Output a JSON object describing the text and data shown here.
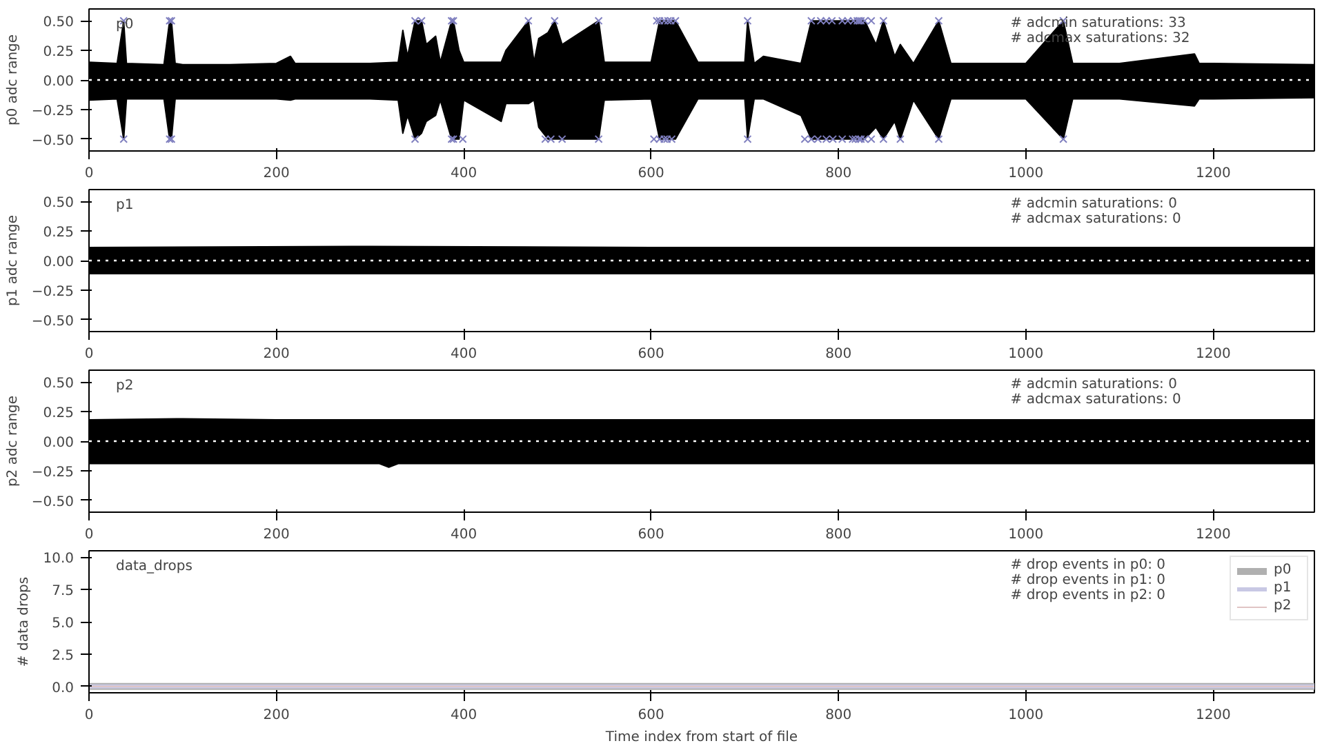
{
  "chart_data": [
    {
      "type": "area",
      "ylabel": "p0 adc range",
      "xlim": [
        0,
        1308
      ],
      "ylim": [
        -0.6,
        0.6
      ],
      "xticks": [
        0,
        200,
        400,
        600,
        800,
        1000,
        1200
      ],
      "yticks": [
        {
          "value": -0.5,
          "label": "−0.50"
        },
        {
          "value": -0.25,
          "label": "−0.25"
        },
        {
          "value": 0,
          "label": "0.00"
        },
        {
          "value": 0.25,
          "label": "0.25"
        },
        {
          "value": 0.5,
          "label": "0.50"
        }
      ],
      "grid": false,
      "annotations": [
        "p0",
        "# adcmin saturations: 33",
        "# adcmax saturations: 32"
      ],
      "ref_lines": [
        {
          "axis": "y",
          "value": 0,
          "color": "#ffffff",
          "line_style": "dotted"
        }
      ],
      "series": [
        {
          "color": "#000000",
          "x": [
            0,
            30,
            37,
            40,
            80,
            86,
            88,
            92,
            100,
            150,
            200,
            215,
            220,
            300,
            330,
            335,
            340,
            348,
            355,
            360,
            370,
            375,
            387,
            389,
            395,
            400,
            440,
            445,
            469,
            475,
            480,
            490,
            497,
            505,
            544,
            550,
            600,
            609,
            616,
            626,
            650,
            700,
            703,
            710,
            720,
            760,
            771,
            781,
            790,
            804,
            816,
            828,
            840,
            848,
            860,
            866,
            880,
            907,
            920,
            1000,
            1040,
            1050,
            1100,
            1180,
            1185,
            1200,
            1308
          ],
          "values": [
            0.15,
            0.14,
            0.5,
            0.14,
            0.13,
            0.5,
            0.5,
            0.14,
            0.13,
            0.13,
            0.14,
            0.2,
            0.14,
            0.14,
            0.15,
            0.42,
            0.2,
            0.5,
            0.5,
            0.3,
            0.37,
            0.15,
            0.5,
            0.5,
            0.25,
            0.15,
            0.15,
            0.25,
            0.5,
            0.15,
            0.35,
            0.4,
            0.5,
            0.3,
            0.5,
            0.15,
            0.15,
            0.5,
            0.5,
            0.5,
            0.15,
            0.15,
            0.5,
            0.14,
            0.2,
            0.14,
            0.5,
            0.5,
            0.5,
            0.5,
            0.5,
            0.5,
            0.3,
            0.5,
            0.2,
            0.3,
            0.14,
            0.5,
            0.14,
            0.14,
            0.5,
            0.14,
            0.14,
            0.22,
            0.14,
            0.14,
            0.13
          ]
        },
        {
          "color": "#000000",
          "x": [
            0,
            30,
            37,
            40,
            80,
            86,
            88,
            92,
            100,
            150,
            200,
            215,
            220,
            300,
            330,
            335,
            340,
            348,
            355,
            360,
            370,
            375,
            387,
            389,
            395,
            400,
            440,
            445,
            469,
            475,
            480,
            490,
            497,
            505,
            544,
            550,
            600,
            609,
            616,
            626,
            650,
            700,
            703,
            710,
            720,
            760,
            771,
            781,
            790,
            804,
            816,
            828,
            840,
            848,
            860,
            866,
            880,
            907,
            920,
            1000,
            1040,
            1050,
            1100,
            1180,
            1185,
            1200,
            1308
          ],
          "values": [
            -0.17,
            -0.16,
            -0.5,
            -0.16,
            -0.16,
            -0.5,
            -0.5,
            -0.16,
            -0.16,
            -0.16,
            -0.16,
            -0.17,
            -0.16,
            -0.16,
            -0.17,
            -0.45,
            -0.3,
            -0.5,
            -0.45,
            -0.35,
            -0.3,
            -0.17,
            -0.5,
            -0.5,
            -0.5,
            -0.17,
            -0.35,
            -0.2,
            -0.2,
            -0.17,
            -0.4,
            -0.5,
            -0.5,
            -0.5,
            -0.5,
            -0.17,
            -0.16,
            -0.5,
            -0.5,
            -0.5,
            -0.16,
            -0.16,
            -0.5,
            -0.16,
            -0.16,
            -0.3,
            -0.5,
            -0.5,
            -0.5,
            -0.5,
            -0.5,
            -0.5,
            -0.4,
            -0.5,
            -0.35,
            -0.5,
            -0.17,
            -0.5,
            -0.16,
            -0.16,
            -0.5,
            -0.16,
            -0.16,
            -0.22,
            -0.16,
            -0.16,
            -0.15
          ]
        },
        {
          "type": "scatter",
          "marker": "cross",
          "color": "#7f7fbf",
          "x": [
            37,
            86,
            88,
            348,
            387,
            389,
            399,
            487,
            493,
            505,
            544,
            603,
            609,
            614,
            617,
            622,
            703,
            764,
            771,
            778,
            787,
            794,
            804,
            815,
            818,
            822,
            824,
            828,
            835,
            848,
            866,
            907,
            1040
          ],
          "values": [
            -0.5,
            -0.5,
            -0.5,
            -0.5,
            -0.5,
            -0.5,
            -0.5,
            -0.5,
            -0.5,
            -0.5,
            -0.5,
            -0.5,
            -0.5,
            -0.5,
            -0.5,
            -0.5,
            -0.5,
            -0.5,
            -0.5,
            -0.5,
            -0.5,
            -0.5,
            -0.5,
            -0.5,
            -0.5,
            -0.5,
            -0.5,
            -0.5,
            -0.5,
            -0.5,
            -0.5,
            -0.5,
            -0.5
          ]
        },
        {
          "type": "scatter",
          "marker": "cross",
          "color": "#7f7fbf",
          "x": [
            37,
            86,
            88,
            348,
            355,
            387,
            389,
            469,
            497,
            544,
            606,
            609,
            614,
            618,
            621,
            626,
            703,
            771,
            781,
            787,
            793,
            804,
            810,
            816,
            820,
            822,
            824,
            828,
            835,
            848,
            907,
            1040
          ],
          "values": [
            0.5,
            0.5,
            0.5,
            0.5,
            0.5,
            0.5,
            0.5,
            0.5,
            0.5,
            0.5,
            0.5,
            0.5,
            0.5,
            0.5,
            0.5,
            0.5,
            0.5,
            0.5,
            0.5,
            0.5,
            0.5,
            0.5,
            0.5,
            0.5,
            0.5,
            0.5,
            0.5,
            0.5,
            0.5,
            0.5,
            0.5,
            0.5
          ]
        }
      ]
    },
    {
      "type": "area",
      "ylabel": "p1 adc range",
      "xlim": [
        0,
        1308
      ],
      "ylim": [
        -0.6,
        0.6
      ],
      "xticks": [
        0,
        200,
        400,
        600,
        800,
        1000,
        1200
      ],
      "yticks": [
        {
          "value": -0.5,
          "label": "−0.50"
        },
        {
          "value": -0.25,
          "label": "−0.25"
        },
        {
          "value": 0,
          "label": "0.00"
        },
        {
          "value": 0.25,
          "label": "0.25"
        },
        {
          "value": 0.5,
          "label": "0.50"
        }
      ],
      "grid": false,
      "annotations": [
        "p1",
        "# adcmin saturations: 0",
        "# adcmax saturations: 0"
      ],
      "ref_lines": [
        {
          "axis": "y",
          "value": 0,
          "color": "#ffffff",
          "line_style": "dotted"
        }
      ],
      "series": [
        {
          "color": "#000000",
          "x": [
            0,
            300,
            600,
            900,
            1308
          ],
          "values": [
            0.11,
            0.12,
            0.11,
            0.11,
            0.11
          ]
        },
        {
          "color": "#000000",
          "x": [
            0,
            300,
            600,
            900,
            1308
          ],
          "values": [
            -0.11,
            -0.11,
            -0.11,
            -0.11,
            -0.11
          ]
        }
      ]
    },
    {
      "type": "area",
      "ylabel": "p2 adc range",
      "xlim": [
        0,
        1308
      ],
      "ylim": [
        -0.6,
        0.6
      ],
      "xticks": [
        0,
        200,
        400,
        600,
        800,
        1000,
        1200
      ],
      "yticks": [
        {
          "value": -0.5,
          "label": "−0.50"
        },
        {
          "value": -0.25,
          "label": "−0.25"
        },
        {
          "value": 0,
          "label": "0.00"
        },
        {
          "value": 0.25,
          "label": "0.25"
        },
        {
          "value": 0.5,
          "label": "0.50"
        }
      ],
      "grid": false,
      "annotations": [
        "p2",
        "# adcmin saturations: 0",
        "# adcmax saturations: 0"
      ],
      "ref_lines": [
        {
          "axis": "y",
          "value": 0,
          "color": "#ffffff",
          "line_style": "dotted"
        }
      ],
      "series": [
        {
          "color": "#000000",
          "x": [
            0,
            100,
            200,
            300,
            600,
            900,
            1308
          ],
          "values": [
            0.18,
            0.19,
            0.18,
            0.18,
            0.18,
            0.18,
            0.18
          ]
        },
        {
          "color": "#000000",
          "x": [
            0,
            100,
            200,
            310,
            320,
            330,
            600,
            900,
            1308
          ],
          "values": [
            -0.19,
            -0.19,
            -0.19,
            -0.19,
            -0.22,
            -0.19,
            -0.19,
            -0.19,
            -0.19
          ]
        }
      ]
    },
    {
      "type": "line",
      "xlabel": "Time index from start of file",
      "ylabel": "# data drops",
      "xlim": [
        0,
        1308
      ],
      "ylim": [
        -0.5,
        10.5
      ],
      "xticks": [
        0,
        200,
        400,
        600,
        800,
        1000,
        1200
      ],
      "yticks": [
        {
          "value": 0,
          "label": "0.0"
        },
        {
          "value": 2.5,
          "label": "2.5"
        },
        {
          "value": 5,
          "label": "5.0"
        },
        {
          "value": 7.5,
          "label": "7.5"
        },
        {
          "value": 10,
          "label": "10.0"
        }
      ],
      "grid": false,
      "legend": "top right",
      "annotations": [
        "data_drops",
        "# drop events in p0: 0",
        "# drop events in p1: 0",
        "# drop events in p2: 0"
      ],
      "series": [
        {
          "name": "p0",
          "color": "#b0b0b0",
          "x": [
            0,
            1308
          ],
          "values": [
            0,
            0
          ]
        },
        {
          "name": "p1",
          "color": "#c8c8e4",
          "x": [
            0,
            1308
          ],
          "values": [
            0,
            0
          ]
        },
        {
          "name": "p2",
          "color": "#e0c4c4",
          "x": [
            0,
            1308
          ],
          "values": [
            0,
            0
          ]
        }
      ]
    }
  ]
}
